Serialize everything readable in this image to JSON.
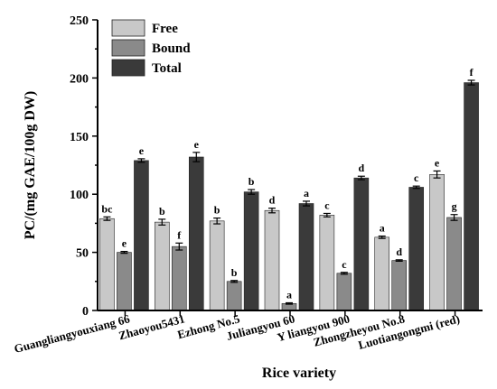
{
  "chart_data": {
    "type": "bar",
    "title": "",
    "xlabel": "Rice variety",
    "ylabel": "PC/(mg GAE/100g DW)",
    "ylim": [
      0,
      250
    ],
    "yticks": [
      0,
      50,
      100,
      150,
      200,
      250
    ],
    "categories": [
      "Guangliangyouxiang 66",
      "Zhaoyou5431",
      "Ezhong No.5",
      "Juliangyou 60",
      "Y liangyou 900",
      "Zhongzheyou No.8",
      "Luotiangongmi (red)"
    ],
    "series": [
      {
        "name": "Free",
        "color": "#c8c8c8",
        "values": [
          79,
          76,
          77,
          86,
          82,
          63,
          117
        ],
        "errors": [
          1.5,
          2.5,
          2.5,
          2,
          1.5,
          1,
          3
        ],
        "letters": [
          "bc",
          "b",
          "b",
          "d",
          "c",
          "a",
          "e"
        ]
      },
      {
        "name": "Bound",
        "color": "#8a8a8a",
        "values": [
          50,
          55,
          25,
          6,
          32,
          43,
          80
        ],
        "errors": [
          0.8,
          3,
          0.8,
          0.6,
          0.8,
          0.6,
          2.5
        ],
        "letters": [
          "e",
          "f",
          "b",
          "a",
          "c",
          "d",
          "g"
        ]
      },
      {
        "name": "Total",
        "color": "#3a3a3a",
        "values": [
          129,
          132,
          102,
          92,
          114,
          106,
          196
        ],
        "errors": [
          1.5,
          4,
          2,
          2,
          1.5,
          1,
          2
        ],
        "letters": [
          "e",
          "e",
          "b",
          "a",
          "d",
          "c",
          "f"
        ]
      }
    ],
    "legend_position": "top-left",
    "grid": false
  }
}
